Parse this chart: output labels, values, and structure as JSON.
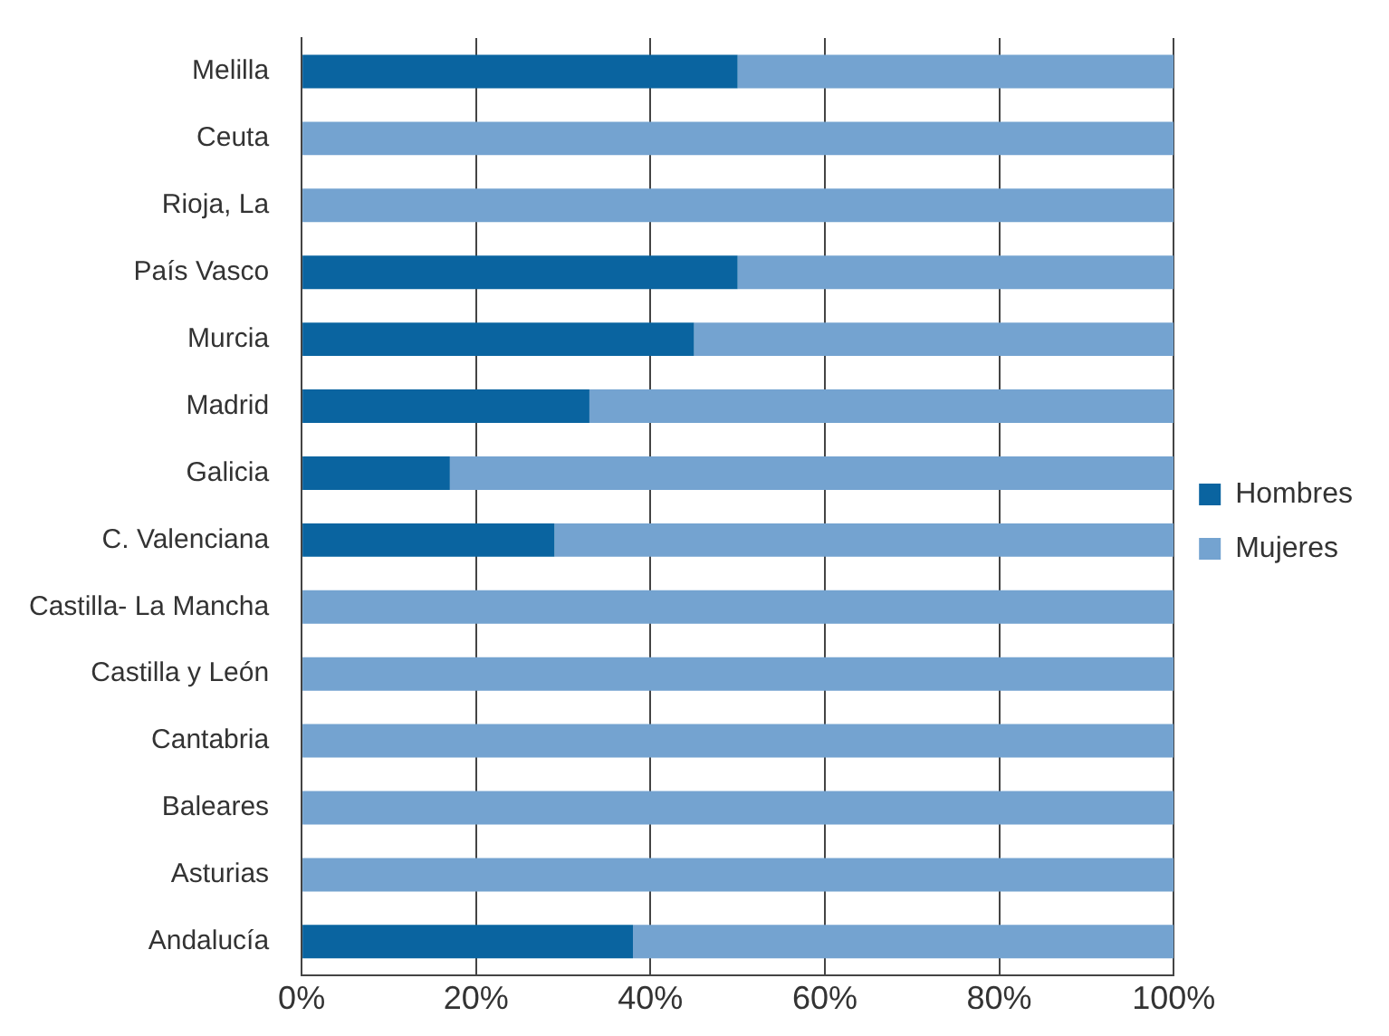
{
  "chart_data": {
    "type": "bar",
    "orientation": "horizontal",
    "stacked": true,
    "categories": [
      "Melilla",
      "Ceuta",
      "Rioja, La",
      "País Vasco",
      "Murcia",
      "Madrid",
      "Galicia",
      "C. Valenciana",
      "Castilla- La Mancha",
      "Castilla y León",
      "Cantabria",
      "Baleares",
      "Asturias",
      "Andalucía"
    ],
    "series": [
      {
        "name": "Hombres",
        "color": "#0a64a0",
        "values": [
          50,
          0,
          0,
          50,
          45,
          33,
          17,
          29,
          0,
          0,
          0,
          0,
          0,
          38
        ]
      },
      {
        "name": "Mujeres",
        "color": "#74a3d0",
        "values": [
          50,
          100,
          100,
          50,
          55,
          67,
          83,
          71,
          100,
          100,
          100,
          100,
          100,
          62
        ]
      }
    ],
    "xlim": [
      0,
      100
    ],
    "xticks": [
      {
        "value": 0,
        "label": "0%"
      },
      {
        "value": 20,
        "label": "20%"
      },
      {
        "value": 40,
        "label": "40%"
      },
      {
        "value": 60,
        "label": "60%"
      },
      {
        "value": 80,
        "label": "80%"
      },
      {
        "value": 100,
        "label": "100%"
      }
    ],
    "grid": "x",
    "legend": "right"
  }
}
